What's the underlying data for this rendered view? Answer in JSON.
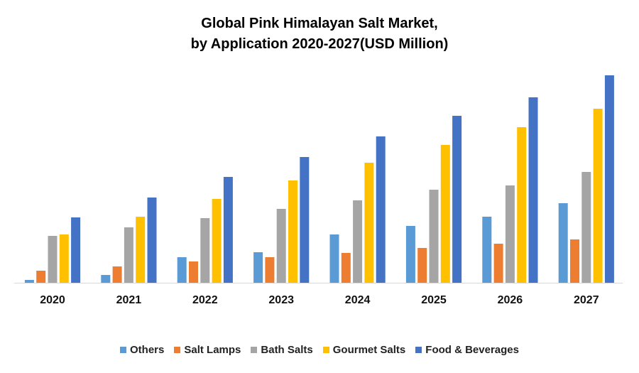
{
  "chart_data": {
    "type": "bar",
    "title_line1": "Global Pink Himalayan Salt Market,",
    "title_line2": "by Application 2020-2027(USD Million)",
    "xlabel": "",
    "ylabel": "",
    "y_axis_shown": false,
    "grid": false,
    "legend_position": "bottom",
    "ylim": [
      0,
      300
    ],
    "categories": [
      "2020",
      "2021",
      "2022",
      "2023",
      "2024",
      "2025",
      "2026",
      "2027"
    ],
    "series": [
      {
        "name": "Others",
        "color": "#5B9BD5",
        "values": [
          4,
          11,
          36,
          43,
          68,
          80,
          93,
          112
        ]
      },
      {
        "name": "Salt Lamps",
        "color": "#ED7D31",
        "values": [
          17,
          23,
          30,
          36,
          42,
          49,
          55,
          61
        ]
      },
      {
        "name": "Bath Salts",
        "color": "#A5A5A5",
        "values": [
          66,
          78,
          91,
          104,
          116,
          131,
          137,
          156
        ]
      },
      {
        "name": "Gourmet Salts",
        "color": "#FFC000",
        "values": [
          68,
          93,
          118,
          144,
          169,
          194,
          219,
          245
        ]
      },
      {
        "name": "Food & Beverages",
        "color": "#4472C4",
        "values": [
          92,
          120,
          149,
          177,
          206,
          235,
          261,
          292
        ]
      }
    ]
  }
}
